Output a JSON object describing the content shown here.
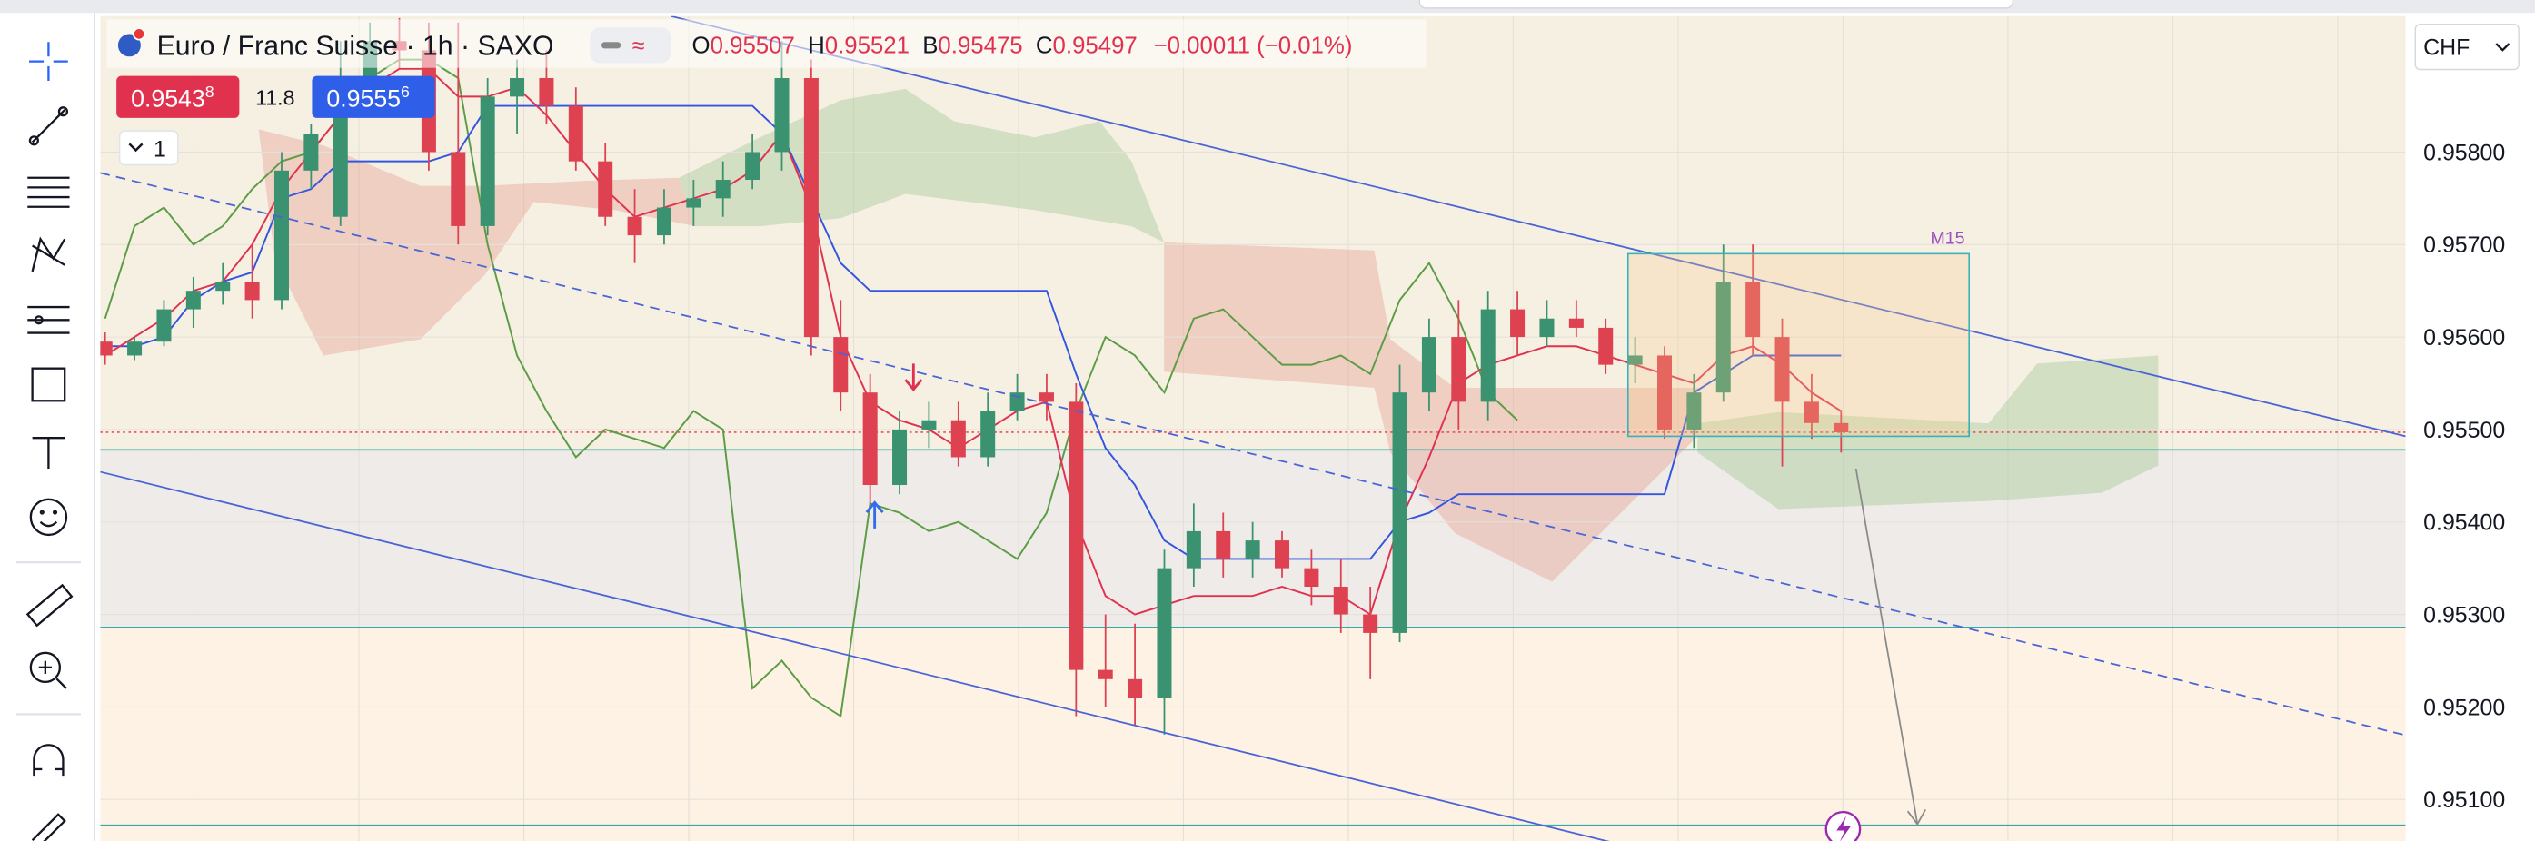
{
  "header": {
    "symbol_title": "Euro / Franc Suisse · 1h · SAXO",
    "ohlc": [
      {
        "key": "O",
        "value": "0.95507"
      },
      {
        "key": "H",
        "value": "0.95521"
      },
      {
        "key": "B",
        "value": "0.95475"
      },
      {
        "key": "C",
        "value": "0.95497"
      }
    ],
    "change": "−0.00011 (−0.01%)"
  },
  "quote": {
    "sell": {
      "main": "0.9543",
      "sup": "8"
    },
    "spread": "11.8",
    "buy": {
      "main": "0.9555",
      "sup": "6"
    }
  },
  "legend_toggle": "1",
  "currency": "CHF",
  "chart_data": {
    "type": "candlestick",
    "annotation": "M15",
    "ylim": [
      0.95055,
      0.95947
    ],
    "yticks": [
      {
        "value": 0.958,
        "label": "0.95800"
      },
      {
        "value": 0.957,
        "label": "0.95700"
      },
      {
        "value": 0.956,
        "label": "0.95600"
      },
      {
        "value": 0.955,
        "label": "0.95500"
      },
      {
        "value": 0.954,
        "label": "0.95400"
      },
      {
        "value": 0.953,
        "label": "0.95300"
      },
      {
        "value": 0.952,
        "label": "0.95200"
      },
      {
        "value": 0.951,
        "label": "0.95100"
      }
    ],
    "grid": true,
    "colors": {
      "up": "#3a9270",
      "down": "#de4150",
      "price_line": "#e8505b"
    },
    "open": [
      0.95595,
      0.9558,
      0.95595,
      0.9563,
      0.9565,
      0.9566,
      0.9564,
      0.9578,
      0.9573,
      0.9588,
      0.9592,
      0.9591,
      0.958,
      0.9572,
      0.9586,
      0.9588,
      0.9585,
      0.9579,
      0.9573,
      0.9571,
      0.9574,
      0.9575,
      0.9577,
      0.958,
      0.9588,
      0.956,
      0.9554,
      0.9544,
      0.955,
      0.9551,
      0.9547,
      0.9552,
      0.9554,
      0.9553,
      0.9524,
      0.9523,
      0.9521,
      0.9535,
      0.9539,
      0.9536,
      0.9538,
      0.9535,
      0.9533,
      0.953,
      0.9528,
      0.9554,
      0.956,
      0.9553,
      0.9563,
      0.956,
      0.9562,
      0.9561,
      0.9557,
      0.9558,
      0.955,
      0.9554,
      0.9566,
      0.956,
      0.9553,
      0.95507
    ],
    "high": [
      0.95605,
      0.956,
      0.9564,
      0.95665,
      0.9568,
      0.957,
      0.958,
      0.9583,
      0.9592,
      0.9594,
      0.95945,
      0.9594,
      0.9594,
      0.9588,
      0.959,
      0.9591,
      0.9587,
      0.9581,
      0.9576,
      0.9576,
      0.9577,
      0.9579,
      0.9582,
      0.9592,
      0.959,
      0.9564,
      0.9556,
      0.9552,
      0.9553,
      0.9553,
      0.9554,
      0.9556,
      0.9556,
      0.9555,
      0.953,
      0.9529,
      0.9537,
      0.9542,
      0.9541,
      0.954,
      0.9539,
      0.9537,
      0.9536,
      0.9533,
      0.9557,
      0.9562,
      0.9564,
      0.9565,
      0.9565,
      0.9564,
      0.9564,
      0.9562,
      0.956,
      0.9559,
      0.9556,
      0.957,
      0.957,
      0.9562,
      0.9556,
      0.95521
    ],
    "low": [
      0.9557,
      0.95575,
      0.9559,
      0.9561,
      0.95635,
      0.9562,
      0.9563,
      0.9576,
      0.9572,
      0.9585,
      0.9589,
      0.9578,
      0.957,
      0.9571,
      0.9582,
      0.9583,
      0.9578,
      0.9572,
      0.9568,
      0.957,
      0.9572,
      0.9573,
      0.9576,
      0.9578,
      0.9558,
      0.9552,
      0.9542,
      0.9543,
      0.9548,
      0.9546,
      0.9546,
      0.9551,
      0.9551,
      0.9519,
      0.952,
      0.9518,
      0.9517,
      0.9533,
      0.9534,
      0.9534,
      0.9534,
      0.9531,
      0.9528,
      0.9523,
      0.9527,
      0.9552,
      0.955,
      0.9551,
      0.9558,
      0.9559,
      0.956,
      0.9556,
      0.9555,
      0.9549,
      0.9548,
      0.9553,
      0.9558,
      0.9546,
      0.9549,
      0.95475
    ],
    "close": [
      0.9558,
      0.95595,
      0.9563,
      0.9565,
      0.9566,
      0.9564,
      0.9578,
      0.9582,
      0.9588,
      0.9592,
      0.9591,
      0.958,
      0.9572,
      0.9586,
      0.9588,
      0.9585,
      0.9579,
      0.9573,
      0.9571,
      0.9574,
      0.9575,
      0.9577,
      0.958,
      0.9588,
      0.956,
      0.9554,
      0.9544,
      0.955,
      0.9551,
      0.9547,
      0.9552,
      0.9554,
      0.9553,
      0.9524,
      0.9523,
      0.9521,
      0.9535,
      0.9539,
      0.9536,
      0.9538,
      0.9535,
      0.9533,
      0.953,
      0.9528,
      0.9554,
      0.956,
      0.9553,
      0.9563,
      0.956,
      0.9562,
      0.9561,
      0.9557,
      0.9558,
      0.955,
      0.9554,
      0.9566,
      0.956,
      0.9553,
      0.95507,
      0.95497
    ],
    "lines": [
      {
        "color": "#5c9c45",
        "values": [
          0.9562,
          0.9572,
          0.9574,
          0.957,
          0.9572,
          0.9576,
          0.9579,
          0.958,
          0.9584,
          0.9588,
          0.959,
          0.959,
          0.9588,
          0.957,
          0.9558,
          0.9552,
          0.9547,
          0.955,
          0.9549,
          0.9548,
          0.9552,
          0.955,
          0.9522,
          0.9525,
          0.9521,
          0.9519,
          0.9542,
          0.9541,
          0.9539,
          0.954,
          0.9538,
          0.9536,
          0.9541,
          0.9552,
          0.956,
          0.9558,
          0.9554,
          0.9562,
          0.9563,
          0.956,
          0.9557,
          0.9557,
          0.9558,
          0.9556,
          0.9564,
          0.9568,
          0.9562,
          0.9554,
          0.9551,
          null,
          null,
          null,
          null,
          null,
          null,
          null,
          null,
          null,
          null,
          null
        ]
      },
      {
        "color": "#3355e0",
        "values": [
          0.9559,
          0.9559,
          0.956,
          0.9564,
          0.9566,
          0.9567,
          0.9575,
          0.9576,
          0.9579,
          0.9579,
          0.9579,
          0.9579,
          0.958,
          0.9585,
          0.9585,
          0.9585,
          0.9585,
          0.9585,
          0.9585,
          0.9585,
          0.9585,
          0.9585,
          0.9585,
          0.9582,
          0.9575,
          0.9568,
          0.9565,
          0.9565,
          0.9565,
          0.9565,
          0.9565,
          0.9565,
          0.9565,
          0.9556,
          0.9548,
          0.9544,
          0.9538,
          0.9536,
          0.9536,
          0.9536,
          0.9536,
          0.9536,
          0.9536,
          0.9536,
          0.954,
          0.9541,
          0.9543,
          0.9543,
          0.9543,
          0.9543,
          0.9543,
          0.9543,
          0.9543,
          0.9543,
          0.9554,
          0.9556,
          0.9558,
          0.9558,
          0.9558,
          0.9558
        ]
      },
      {
        "color": "#e0324f",
        "values": [
          0.9558,
          0.956,
          0.9562,
          0.9565,
          0.9566,
          0.957,
          0.9576,
          0.958,
          0.9584,
          0.9587,
          0.9589,
          0.9589,
          0.9586,
          0.9586,
          0.9587,
          0.9584,
          0.958,
          0.9576,
          0.9573,
          0.9574,
          0.9575,
          0.9576,
          0.9578,
          0.9582,
          0.9574,
          0.956,
          0.9553,
          0.9551,
          0.955,
          0.9548,
          0.955,
          0.9552,
          0.9553,
          0.954,
          0.9532,
          0.953,
          0.9531,
          0.9532,
          0.9532,
          0.9532,
          0.9533,
          0.9532,
          0.9532,
          0.953,
          0.954,
          0.9547,
          0.9555,
          0.9557,
          0.9558,
          0.9559,
          0.9559,
          0.9558,
          0.9557,
          0.9556,
          0.9555,
          0.9558,
          0.9559,
          0.9557,
          0.9554,
          0.9552
        ]
      }
    ],
    "hlines": [
      {
        "value": 0.95478,
        "color": "#35a9a9"
      },
      {
        "value": 0.95286,
        "color": "#35a9a9"
      },
      {
        "value": 0.95072,
        "color": "#35a9a9"
      }
    ]
  }
}
